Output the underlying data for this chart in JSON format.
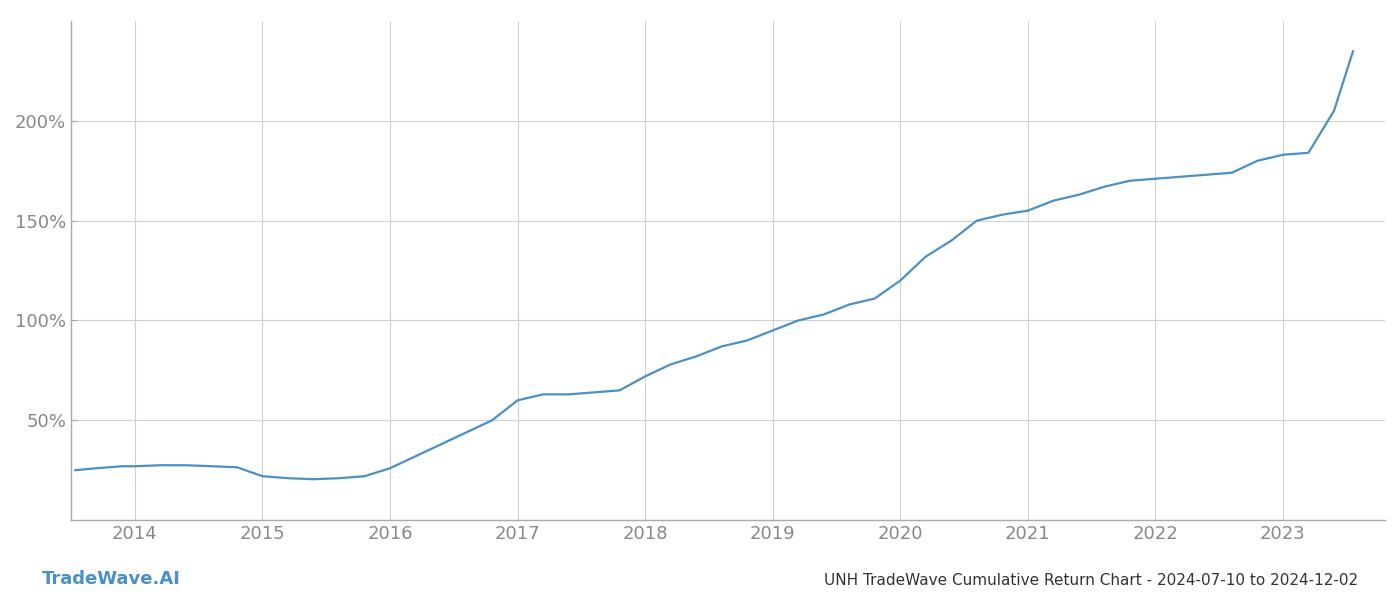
{
  "title": "UNH TradeWave Cumulative Return Chart - 2024-07-10 to 2024-12-02",
  "watermark": "TradeWave.AI",
  "line_color": "#4a90c4",
  "background_color": "#ffffff",
  "grid_color": "#d0d0d0",
  "x_years": [
    2013.53,
    2013.7,
    2013.9,
    2014.0,
    2014.2,
    2014.4,
    2014.6,
    2014.8,
    2015.0,
    2015.2,
    2015.4,
    2015.6,
    2015.8,
    2016.0,
    2016.2,
    2016.4,
    2016.6,
    2016.8,
    2017.0,
    2017.2,
    2017.4,
    2017.6,
    2017.8,
    2018.0,
    2018.2,
    2018.4,
    2018.6,
    2018.8,
    2019.0,
    2019.2,
    2019.4,
    2019.6,
    2019.8,
    2020.0,
    2020.2,
    2020.4,
    2020.6,
    2020.8,
    2021.0,
    2021.2,
    2021.4,
    2021.6,
    2021.8,
    2022.0,
    2022.2,
    2022.4,
    2022.6,
    2022.8,
    2023.0,
    2023.2,
    2023.4,
    2023.55
  ],
  "y_values": [
    25,
    26,
    27,
    27,
    27.5,
    27.5,
    27,
    26.5,
    22,
    21,
    20.5,
    21,
    22,
    26,
    32,
    38,
    44,
    50,
    60,
    63,
    63,
    64,
    65,
    72,
    78,
    82,
    87,
    90,
    95,
    100,
    103,
    108,
    111,
    120,
    132,
    140,
    150,
    153,
    155,
    160,
    163,
    167,
    170,
    171,
    172,
    173,
    174,
    180,
    183,
    184,
    205,
    235
  ],
  "ytick_values": [
    50,
    100,
    150,
    200
  ],
  "ytick_labels": [
    "50%",
    "100%",
    "150%",
    "200%"
  ],
  "xtick_values": [
    2014,
    2015,
    2016,
    2017,
    2018,
    2019,
    2020,
    2021,
    2022,
    2023
  ],
  "ylim": [
    0,
    250
  ],
  "xlim": [
    2013.5,
    2023.8
  ],
  "line_width": 1.6,
  "title_fontsize": 11,
  "tick_fontsize": 13,
  "watermark_fontsize": 13
}
